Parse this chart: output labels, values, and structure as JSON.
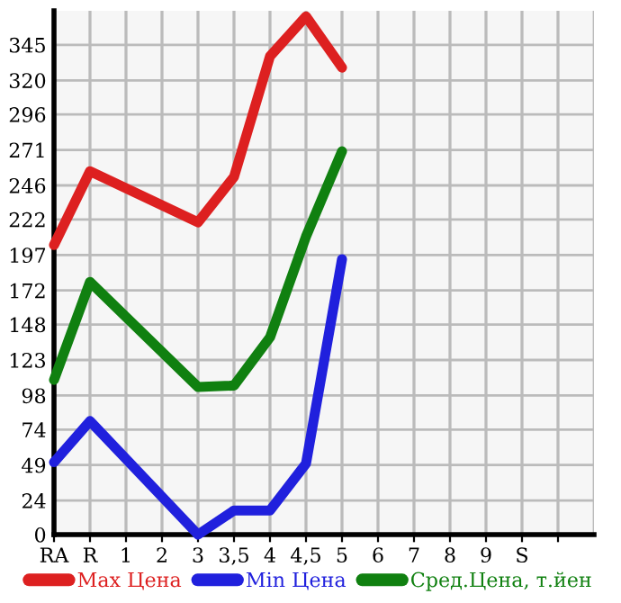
{
  "chart_data": {
    "type": "line",
    "categories": [
      "RA",
      "R",
      "1",
      "2",
      "3",
      "3,5",
      "4",
      "4,5",
      "5",
      "6",
      "7",
      "8",
      "9",
      "S",
      null
    ],
    "series": [
      {
        "name": "Max Цена",
        "color": "#dd2020",
        "values": [
          204,
          256,
          null,
          null,
          220,
          252,
          337,
          365,
          329,
          null,
          null,
          null,
          null,
          null,
          null
        ]
      },
      {
        "name": "Min Цена",
        "color": "#2020dd",
        "values": [
          51,
          80,
          null,
          null,
          0,
          17,
          17,
          50,
          194,
          null,
          null,
          null,
          null,
          null,
          null
        ]
      },
      {
        "name": "Сред.Цена, т.йен",
        "color": "#108010",
        "values": [
          109,
          178,
          null,
          null,
          104,
          105,
          139,
          210,
          270,
          null,
          null,
          null,
          null,
          null,
          null
        ]
      }
    ],
    "ylim": [
      0,
      369
    ],
    "yticks": [
      0,
      24,
      49,
      74,
      98,
      123,
      148,
      172,
      197,
      222,
      246,
      271,
      296,
      320,
      345
    ],
    "grid": true,
    "legend": "bottom",
    "marker": "none",
    "line_style": "solid"
  }
}
